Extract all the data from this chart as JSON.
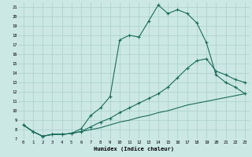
{
  "xlabel": "Humidex (Indice chaleur)",
  "bg_color": "#cce8e4",
  "grid_color": "#aacfc9",
  "line_color": "#1a6b5a",
  "xlim": [
    -0.5,
    23.5
  ],
  "ylim": [
    7,
    21.5
  ],
  "xticks": [
    0,
    1,
    2,
    3,
    4,
    5,
    6,
    7,
    8,
    9,
    10,
    11,
    12,
    13,
    14,
    15,
    16,
    17,
    18,
    19,
    20,
    21,
    22,
    23
  ],
  "yticks": [
    7,
    8,
    9,
    10,
    11,
    12,
    13,
    14,
    15,
    16,
    17,
    18,
    19,
    20,
    21
  ],
  "line1_x": [
    0,
    1,
    2,
    3,
    4,
    5,
    6,
    7,
    8,
    9,
    10,
    11,
    12,
    13,
    14,
    15,
    16,
    17,
    18,
    19,
    20,
    21,
    22,
    23
  ],
  "line1_y": [
    8.5,
    7.8,
    7.3,
    7.5,
    7.5,
    7.6,
    8.1,
    9.5,
    10.3,
    11.5,
    17.5,
    18.0,
    17.8,
    19.5,
    21.2,
    20.3,
    20.7,
    20.3,
    19.3,
    17.2,
    13.8,
    13.0,
    12.5,
    11.8
  ],
  "line2_x": [
    0,
    1,
    2,
    3,
    4,
    5,
    6,
    7,
    8,
    9,
    10,
    11,
    12,
    13,
    14,
    15,
    16,
    17,
    18,
    19,
    20,
    21,
    22,
    23
  ],
  "line2_y": [
    8.5,
    7.8,
    7.3,
    7.5,
    7.5,
    7.6,
    7.8,
    8.3,
    8.8,
    9.2,
    9.8,
    10.3,
    10.8,
    11.3,
    11.8,
    12.5,
    13.5,
    14.5,
    15.3,
    15.5,
    14.2,
    13.8,
    13.3,
    13.0
  ],
  "line3_x": [
    0,
    1,
    2,
    3,
    4,
    5,
    6,
    7,
    8,
    9,
    10,
    11,
    12,
    13,
    14,
    15,
    16,
    17,
    18,
    19,
    20,
    21,
    22,
    23
  ],
  "line3_y": [
    8.5,
    7.8,
    7.3,
    7.5,
    7.5,
    7.6,
    7.8,
    8.0,
    8.2,
    8.5,
    8.8,
    9.0,
    9.3,
    9.5,
    9.8,
    10.0,
    10.3,
    10.6,
    10.8,
    11.0,
    11.2,
    11.4,
    11.6,
    11.8
  ]
}
